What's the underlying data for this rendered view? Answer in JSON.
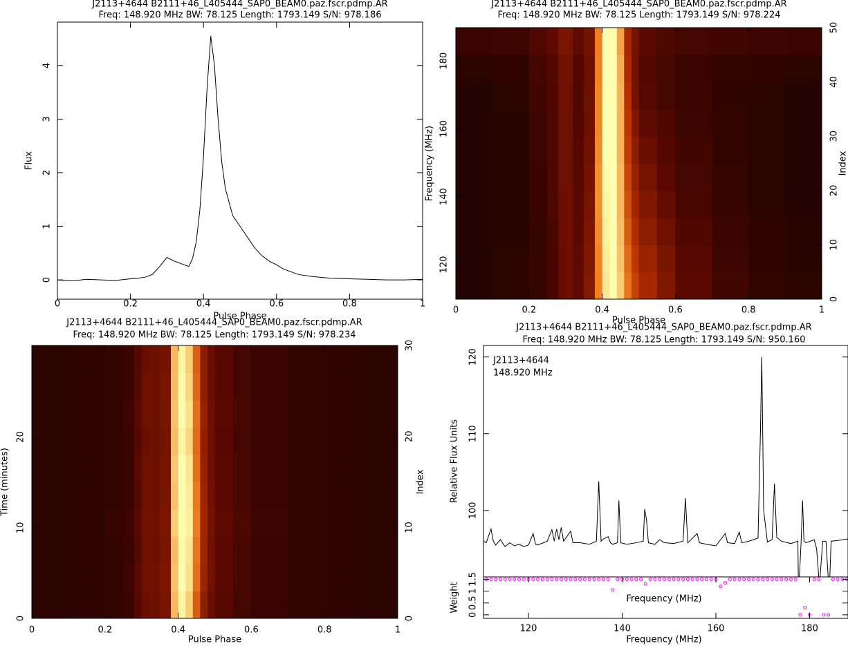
{
  "chart_data": [
    {
      "type": "line",
      "title": "J2113+4644  B2111+46_L405444_SAP0_BEAM0.paz.fscr.pdmp.AR",
      "subtitle": "Freq: 148.920 MHz BW: 78.125 Length: 1793.149 S/N: 978.186",
      "xlabel": "Pulse Phase",
      "ylabel": "Flux",
      "x": [
        0,
        0.04,
        0.08,
        0.12,
        0.16,
        0.2,
        0.22,
        0.24,
        0.26,
        0.28,
        0.3,
        0.32,
        0.34,
        0.36,
        0.37,
        0.38,
        0.39,
        0.4,
        0.41,
        0.42,
        0.43,
        0.44,
        0.45,
        0.46,
        0.48,
        0.5,
        0.52,
        0.54,
        0.56,
        0.58,
        0.6,
        0.62,
        0.64,
        0.66,
        0.7,
        0.75,
        0.8,
        0.85,
        0.9,
        0.95,
        1
      ],
      "values": [
        0,
        -0.02,
        0.01,
        0,
        -0.01,
        0.02,
        0.03,
        0.05,
        0.1,
        0.25,
        0.42,
        0.35,
        0.3,
        0.25,
        0.4,
        0.7,
        1.3,
        2.3,
        3.6,
        4.55,
        4.0,
        3.0,
        2.2,
        1.7,
        1.2,
        1,
        0.8,
        0.6,
        0.45,
        0.35,
        0.28,
        0.2,
        0.15,
        0.1,
        0.06,
        0.03,
        0.02,
        0.01,
        0,
        0,
        0.01
      ],
      "color": "#000000",
      "xlim": [
        0,
        1
      ],
      "ylim": [
        -0.36,
        4.81
      ],
      "xticks": [
        0,
        0.2,
        0.4,
        0.6,
        0.8,
        1
      ],
      "yticks": [
        0,
        1,
        2,
        3,
        4
      ]
    },
    {
      "type": "heatmap",
      "title": "J2113+4644  B2111+46_L405444_SAP0_BEAM0.paz.fscr.pdmp.AR",
      "subtitle": "Freq: 148.920 MHz BW: 78.125 Length: 1793.149 S/N: 978.224",
      "xlabel": "Pulse Phase",
      "ylabel": "Frequency (MHz)",
      "y2label": "Index",
      "xlim": [
        0,
        1
      ],
      "ylim": [
        109.8,
        189.8
      ],
      "y2lim": [
        0,
        50
      ],
      "xticks": [
        0,
        0.2,
        0.4,
        0.6,
        0.8,
        1
      ],
      "yticks": [
        120,
        140,
        160,
        180
      ],
      "y2ticks": [
        0,
        10,
        20,
        30,
        40,
        50
      ],
      "axis": "y2",
      "colormap": [
        "#000000",
        "#5a0800",
        "#b83000",
        "#f08020",
        "#ffffb0"
      ],
      "xbins": [
        0,
        0.1,
        0.2,
        0.25,
        0.28,
        0.3,
        0.32,
        0.35,
        0.38,
        0.4,
        0.42,
        0.44,
        0.46,
        0.48,
        0.5,
        0.55,
        0.6,
        0.7,
        0.8,
        0.9,
        1
      ],
      "ybins": [
        0,
        5,
        10,
        15,
        20,
        25,
        30,
        35,
        40,
        45,
        50
      ],
      "values": [
        [
          0.1,
          0.12,
          0.15,
          0.2,
          0.28,
          0.3,
          0.26,
          0.36,
          0.75,
          0.95,
          1,
          0.9,
          0.72,
          0.56,
          0.45,
          0.35,
          0.25,
          0.18,
          0.14,
          0.12
        ],
        [
          0.1,
          0.12,
          0.15,
          0.2,
          0.28,
          0.3,
          0.26,
          0.35,
          0.76,
          0.96,
          1,
          0.88,
          0.68,
          0.52,
          0.42,
          0.33,
          0.24,
          0.17,
          0.13,
          0.11
        ],
        [
          0.1,
          0.11,
          0.15,
          0.2,
          0.29,
          0.3,
          0.25,
          0.34,
          0.77,
          0.97,
          1,
          0.87,
          0.64,
          0.48,
          0.38,
          0.3,
          0.22,
          0.16,
          0.13,
          0.11
        ],
        [
          0.1,
          0.11,
          0.16,
          0.21,
          0.29,
          0.3,
          0.25,
          0.33,
          0.78,
          0.98,
          1,
          0.86,
          0.6,
          0.44,
          0.35,
          0.27,
          0.2,
          0.15,
          0.12,
          0.1
        ],
        [
          0.1,
          0.11,
          0.16,
          0.21,
          0.3,
          0.3,
          0.24,
          0.32,
          0.78,
          0.99,
          1,
          0.86,
          0.57,
          0.41,
          0.32,
          0.25,
          0.19,
          0.15,
          0.12,
          0.1
        ],
        [
          0.1,
          0.11,
          0.17,
          0.21,
          0.3,
          0.3,
          0.24,
          0.31,
          0.77,
          1,
          1,
          0.85,
          0.54,
          0.38,
          0.29,
          0.23,
          0.18,
          0.14,
          0.12,
          0.1
        ],
        [
          0.1,
          0.11,
          0.17,
          0.22,
          0.3,
          0.3,
          0.23,
          0.3,
          0.76,
          1,
          1,
          0.85,
          0.52,
          0.35,
          0.26,
          0.21,
          0.17,
          0.14,
          0.12,
          0.1
        ],
        [
          0.1,
          0.12,
          0.18,
          0.22,
          0.3,
          0.3,
          0.22,
          0.3,
          0.76,
          1,
          1,
          0.85,
          0.5,
          0.32,
          0.24,
          0.19,
          0.16,
          0.13,
          0.12,
          0.1
        ],
        [
          0.12,
          0.13,
          0.19,
          0.23,
          0.31,
          0.31,
          0.23,
          0.3,
          0.75,
          1,
          1,
          0.84,
          0.47,
          0.31,
          0.23,
          0.19,
          0.16,
          0.14,
          0.13,
          0.12
        ],
        [
          0.16,
          0.17,
          0.22,
          0.26,
          0.33,
          0.33,
          0.26,
          0.32,
          0.74,
          1,
          1,
          0.82,
          0.45,
          0.32,
          0.25,
          0.21,
          0.19,
          0.18,
          0.17,
          0.16
        ]
      ]
    },
    {
      "type": "heatmap",
      "title": "J2113+4644  B2111+46_L405444_SAP0_BEAM0.paz.fscr.pdmp.AR",
      "subtitle": "Freq: 148.920 MHz BW: 78.125 Length: 1793.149 S/N: 978.234",
      "xlabel": "Pulse Phase",
      "ylabel": "Time (minutes)",
      "y2label": "Index",
      "xlim": [
        0,
        1
      ],
      "ylim": [
        0,
        30.1
      ],
      "y2lim": [
        0,
        30
      ],
      "xticks": [
        0,
        0.2,
        0.4,
        0.6,
        0.8,
        1
      ],
      "yticks": [
        0,
        10,
        20
      ],
      "y2ticks": [
        0,
        10,
        20,
        30
      ],
      "axis": "y2",
      "colormap": [
        "#000000",
        "#5a0800",
        "#b83000",
        "#f08020",
        "#ffffb0"
      ],
      "xbins": [
        0,
        0.1,
        0.2,
        0.25,
        0.28,
        0.3,
        0.32,
        0.35,
        0.38,
        0.4,
        0.42,
        0.44,
        0.46,
        0.48,
        0.5,
        0.55,
        0.6,
        0.7,
        0.8,
        0.9,
        1
      ],
      "ybins": [
        0,
        3,
        6,
        9,
        12,
        15,
        18,
        21,
        24,
        27,
        30
      ],
      "values": [
        [
          0.12,
          0.13,
          0.14,
          0.16,
          0.24,
          0.29,
          0.3,
          0.33,
          0.86,
          0.98,
          0.9,
          0.64,
          0.38,
          0.29,
          0.24,
          0.19,
          0.16,
          0.14,
          0.13,
          0.12
        ],
        [
          0.12,
          0.13,
          0.14,
          0.17,
          0.25,
          0.3,
          0.31,
          0.34,
          0.88,
          1,
          0.94,
          0.7,
          0.42,
          0.31,
          0.25,
          0.2,
          0.16,
          0.14,
          0.13,
          0.12
        ],
        [
          0.12,
          0.13,
          0.14,
          0.16,
          0.24,
          0.3,
          0.3,
          0.33,
          0.87,
          0.99,
          0.95,
          0.72,
          0.43,
          0.31,
          0.25,
          0.2,
          0.16,
          0.14,
          0.13,
          0.12
        ],
        [
          0.12,
          0.13,
          0.15,
          0.17,
          0.25,
          0.31,
          0.31,
          0.34,
          0.9,
          1,
          0.97,
          0.74,
          0.44,
          0.32,
          0.26,
          0.21,
          0.17,
          0.14,
          0.13,
          0.12
        ],
        [
          0.12,
          0.13,
          0.14,
          0.16,
          0.24,
          0.3,
          0.3,
          0.33,
          0.88,
          1,
          0.96,
          0.73,
          0.43,
          0.31,
          0.25,
          0.2,
          0.16,
          0.14,
          0.13,
          0.12
        ],
        [
          0.12,
          0.13,
          0.14,
          0.16,
          0.25,
          0.3,
          0.3,
          0.33,
          0.89,
          1,
          0.95,
          0.7,
          0.41,
          0.3,
          0.25,
          0.2,
          0.16,
          0.14,
          0.13,
          0.12
        ],
        [
          0.12,
          0.13,
          0.14,
          0.16,
          0.24,
          0.29,
          0.3,
          0.32,
          0.87,
          0.98,
          0.92,
          0.68,
          0.4,
          0.3,
          0.24,
          0.19,
          0.16,
          0.14,
          0.13,
          0.12
        ],
        [
          0.12,
          0.13,
          0.14,
          0.17,
          0.25,
          0.3,
          0.3,
          0.33,
          0.88,
          1,
          0.94,
          0.7,
          0.41,
          0.3,
          0.25,
          0.2,
          0.16,
          0.14,
          0.13,
          0.12
        ],
        [
          0.12,
          0.13,
          0.14,
          0.16,
          0.24,
          0.3,
          0.3,
          0.33,
          0.87,
          0.99,
          0.92,
          0.67,
          0.39,
          0.29,
          0.24,
          0.19,
          0.16,
          0.14,
          0.13,
          0.12
        ],
        [
          0.12,
          0.13,
          0.14,
          0.16,
          0.24,
          0.29,
          0.3,
          0.32,
          0.86,
          0.98,
          0.9,
          0.65,
          0.38,
          0.29,
          0.24,
          0.19,
          0.16,
          0.14,
          0.13,
          0.12
        ]
      ]
    },
    {
      "type": "line",
      "title": "J2113+4644  B2111+46_L405444_SAP0_BEAM0.paz.fscr.pdmp.AR",
      "subtitle": "Freq: 148.920 MHz BW: 78.125 Length: 1793.149 S/N: 950.160",
      "xlabel": "Frequency (MHz)",
      "ylabel": "Relative Flux Units",
      "annotations": [
        "J2113+4644",
        "148.920 MHz"
      ],
      "x": [
        110.4,
        111,
        112,
        112.5,
        113,
        114,
        115,
        116,
        117,
        118,
        119,
        120,
        121,
        121.5,
        122,
        124,
        125,
        125.5,
        126,
        126.5,
        127,
        127.5,
        129,
        129.5,
        131,
        133,
        134.5,
        135,
        135.5,
        136,
        137,
        137.5,
        138,
        139,
        139.3,
        139.7,
        141,
        143,
        144.5,
        144.8,
        145.2,
        145.6,
        147,
        148,
        149,
        151,
        153,
        153.5,
        154,
        156,
        156.5,
        158,
        160,
        162,
        162.5,
        164,
        165,
        165.5,
        167,
        169,
        169.5,
        169.8,
        170.2,
        171,
        172,
        172.5,
        173,
        174,
        176,
        177.5,
        177.6,
        177.8,
        178.2,
        178.5,
        178.8,
        179.2,
        181,
        181.5,
        182,
        182.2,
        182.8,
        183.5,
        184,
        184.3,
        184.6,
        186,
        188.2
      ],
      "values": [
        96,
        95.8,
        97.6,
        96,
        95.5,
        96.2,
        95.3,
        95.8,
        95.4,
        95.6,
        95.3,
        95.5,
        97,
        95.6,
        95.5,
        96,
        97.5,
        96,
        97.6,
        96.2,
        97.8,
        96,
        97.3,
        95.8,
        95.8,
        95.6,
        96,
        103.8,
        96,
        96.3,
        96.6,
        95.8,
        95.6,
        95.8,
        101.3,
        95.8,
        95.6,
        95.8,
        96,
        100.2,
        98.8,
        95.8,
        95.6,
        96.2,
        95.8,
        95.7,
        96,
        101.6,
        95.8,
        97,
        95.8,
        95.6,
        95.4,
        97,
        95.8,
        95.7,
        97.2,
        95.8,
        96,
        96.4,
        110,
        120,
        100,
        95.9,
        96.2,
        103.5,
        96.5,
        96,
        95.7,
        96,
        91,
        91,
        96,
        101.3,
        96,
        95.8,
        96.2,
        95,
        91,
        91,
        96,
        96,
        91,
        91,
        96,
        96.1,
        96.3
      ],
      "color": "#000000",
      "xlim": [
        110.4,
        188.2
      ],
      "ylim": [
        91.35,
        121.5
      ],
      "yticks": [
        100,
        110,
        120
      ]
    },
    {
      "type": "scatter",
      "xlabel": "Frequency (MHz)",
      "ylabel": "Weight",
      "x": [
        111,
        112,
        113,
        114,
        115,
        116,
        117,
        118,
        119,
        120,
        121,
        122,
        123,
        124,
        125,
        126,
        127,
        128,
        129,
        130,
        131,
        132,
        133,
        134,
        135,
        136,
        137,
        138,
        139,
        140,
        141,
        142,
        143,
        144,
        145,
        146,
        147,
        148,
        149,
        150,
        151,
        152,
        153,
        154,
        155,
        156,
        157,
        158,
        159,
        160,
        161,
        162,
        163,
        164,
        165,
        166,
        167,
        168,
        169,
        170,
        171,
        172,
        173,
        174,
        175,
        176,
        177,
        178,
        179,
        180,
        181,
        182,
        183,
        184,
        185,
        186,
        187,
        188
      ],
      "values": [
        1.5,
        1.5,
        1.5,
        1.5,
        1.5,
        1.5,
        1.5,
        1.5,
        1.5,
        1.5,
        1.5,
        1.5,
        1.5,
        1.5,
        1.5,
        1.5,
        1.5,
        1.5,
        1.5,
        1.5,
        1.5,
        1.5,
        1.5,
        1.5,
        1.5,
        1.5,
        1.5,
        1.05,
        1.5,
        1.5,
        1.5,
        1.5,
        1.5,
        1.5,
        1.3,
        1.5,
        1.5,
        1.5,
        1.5,
        1.5,
        1.5,
        1.5,
        1.5,
        1.5,
        1.5,
        1.5,
        1.5,
        1.5,
        1.5,
        1.5,
        1.2,
        1.35,
        1.5,
        1.5,
        1.5,
        1.5,
        1.5,
        1.5,
        1.5,
        1.5,
        1.5,
        1.5,
        1.5,
        1.5,
        1.5,
        1.5,
        1.5,
        0,
        0.3,
        0,
        1.5,
        1.5,
        0,
        0,
        1.5,
        1.5,
        1.5,
        1.5
      ],
      "color": "#ff00ff",
      "xlim": [
        110.4,
        188.2
      ],
      "ylim": [
        -0.15,
        1.6
      ],
      "xticks": [
        120,
        140,
        160,
        180
      ],
      "yticks": [
        0,
        0.5,
        1,
        1.5
      ]
    }
  ]
}
